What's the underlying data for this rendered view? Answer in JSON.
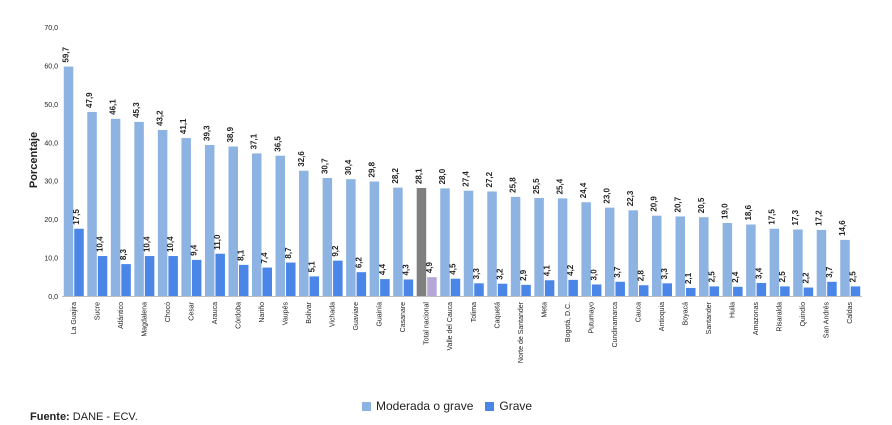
{
  "chart_data": {
    "type": "bar",
    "ylabel": "Porcentaje",
    "ylim": [
      0,
      70
    ],
    "yticks": [
      "0,0",
      "10,0",
      "20,0",
      "30,0",
      "40,0",
      "50,0",
      "60,0",
      "70,0"
    ],
    "categories": [
      "La Guajira",
      "Sucre",
      "Atlántico",
      "Magdalena",
      "Chocó",
      "Cesar",
      "Arauca",
      "Córdoba",
      "Nariño",
      "Vaupés",
      "Bolívar",
      "Vichada",
      "Guaviare",
      "Guainía",
      "Casanare",
      "Total nacional",
      "Valle del Cauca",
      "Tolima",
      "Caquetá",
      "Norte de Santander",
      "Meta",
      "Bogotá, D.C.",
      "Putumayo",
      "Cundinamarca",
      "Cauca",
      "Antioquia",
      "Boyacá",
      "Santander",
      "Huila",
      "Amazonas",
      "Risaralda",
      "Quindío",
      "San Andrés",
      "Caldas"
    ],
    "highlight_category": "Total nacional",
    "series": [
      {
        "name": "Moderada o grave",
        "color": "#8db3e2",
        "highlight_color": "#7f7f7f",
        "values": [
          59.7,
          47.9,
          46.1,
          45.3,
          43.2,
          41.1,
          39.3,
          38.9,
          37.1,
          36.5,
          32.6,
          30.7,
          30.4,
          29.8,
          28.2,
          28.1,
          28.0,
          27.4,
          27.2,
          25.8,
          25.5,
          25.4,
          24.4,
          23.0,
          22.3,
          20.9,
          20.7,
          20.5,
          19.0,
          18.6,
          17.5,
          17.3,
          17.2,
          14.6
        ],
        "labels": [
          "59,7",
          "47,9",
          "46,1",
          "45,3",
          "43,2",
          "41,1",
          "39,3",
          "38,9",
          "37,1",
          "36,5",
          "32,6",
          "30,7",
          "30,4",
          "29,8",
          "28,2",
          "28,1",
          "28,0",
          "27,4",
          "27,2",
          "25,8",
          "25,5",
          "25,4",
          "24,4",
          "23,0",
          "22,3",
          "20,9",
          "20,7",
          "20,5",
          "19,0",
          "18,6",
          "17,5",
          "17,3",
          "17,2",
          "14,6"
        ]
      },
      {
        "name": "Grave",
        "color": "#4a86e8",
        "highlight_color": "#b4a7d6",
        "values": [
          17.5,
          10.4,
          8.3,
          10.4,
          10.4,
          9.4,
          11.0,
          8.1,
          7.4,
          8.7,
          5.1,
          9.2,
          6.2,
          4.4,
          4.3,
          4.9,
          4.5,
          3.3,
          3.2,
          2.9,
          4.1,
          4.2,
          3.0,
          3.7,
          2.8,
          3.3,
          2.1,
          2.5,
          2.4,
          3.4,
          2.5,
          2.2,
          3.7,
          2.5
        ],
        "labels": [
          "17,5",
          "10,4",
          "8,3",
          "10,4",
          "10,4",
          "9,4",
          "11,0",
          "8,1",
          "7,4",
          "8,7",
          "5,1",
          "9,2",
          "6,2",
          "4,4",
          "4,3",
          "4,9",
          "4,5",
          "3,3",
          "3,2",
          "2,9",
          "4,1",
          "4,2",
          "3,0",
          "3,7",
          "2,8",
          "3,3",
          "2,1",
          "2,5",
          "2,4",
          "3,4",
          "2,5",
          "2,2",
          "3,7",
          "2,5"
        ]
      }
    ],
    "legend": "bottom-center",
    "grid": false
  },
  "source": {
    "label": "Fuente:",
    "text": "DANE - ECV."
  }
}
